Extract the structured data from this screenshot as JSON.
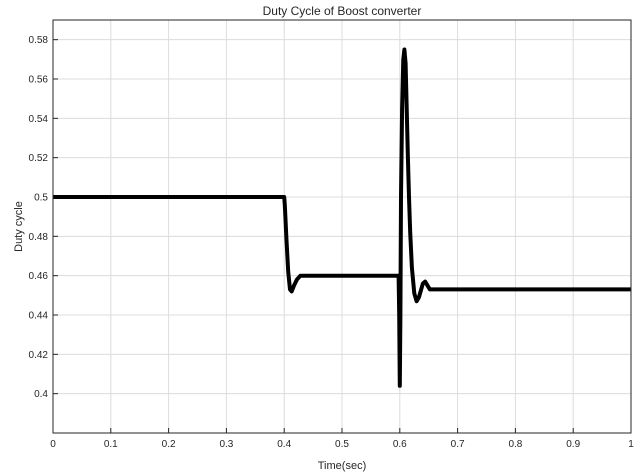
{
  "chart_data": {
    "type": "line",
    "title": "Duty Cycle of Boost converter",
    "xlabel": "Time(sec)",
    "ylabel": "Duty cycle",
    "xlim": [
      0,
      1
    ],
    "ylim": [
      0.38,
      0.59
    ],
    "grid": true,
    "x_ticks": [
      "0",
      "0.1",
      "0.2",
      "0.3",
      "0.4",
      "0.5",
      "0.6",
      "0.7",
      "0.8",
      "0.9",
      "1"
    ],
    "y_ticks": [
      "0.4",
      "0.42",
      "0.44",
      "0.46",
      "0.48",
      "0.5",
      "0.52",
      "0.54",
      "0.56",
      "0.58"
    ],
    "series": [
      {
        "color": "#000000",
        "x": [
          0,
          0.4,
          0.401,
          0.404,
          0.407,
          0.41,
          0.413,
          0.417,
          0.422,
          0.428,
          0.435,
          0.445,
          0.46,
          0.5,
          0.55,
          0.598,
          0.599,
          0.6,
          0.601,
          0.602,
          0.604,
          0.606,
          0.608,
          0.61,
          0.612,
          0.614,
          0.616,
          0.618,
          0.621,
          0.625,
          0.629,
          0.633,
          0.636,
          0.64,
          0.644,
          0.648,
          0.652,
          0.657,
          0.665,
          0.68,
          0.75,
          0.85,
          1.0
        ],
        "y": [
          0.5,
          0.5,
          0.496,
          0.478,
          0.462,
          0.453,
          0.452,
          0.455,
          0.458,
          0.46,
          0.46,
          0.46,
          0.46,
          0.46,
          0.46,
          0.46,
          0.44,
          0.404,
          0.44,
          0.5,
          0.545,
          0.57,
          0.575,
          0.568,
          0.545,
          0.52,
          0.5,
          0.482,
          0.464,
          0.451,
          0.447,
          0.449,
          0.452,
          0.456,
          0.457,
          0.455,
          0.453,
          0.453,
          0.453,
          0.453,
          0.453,
          0.453,
          0.453
        ]
      }
    ]
  }
}
